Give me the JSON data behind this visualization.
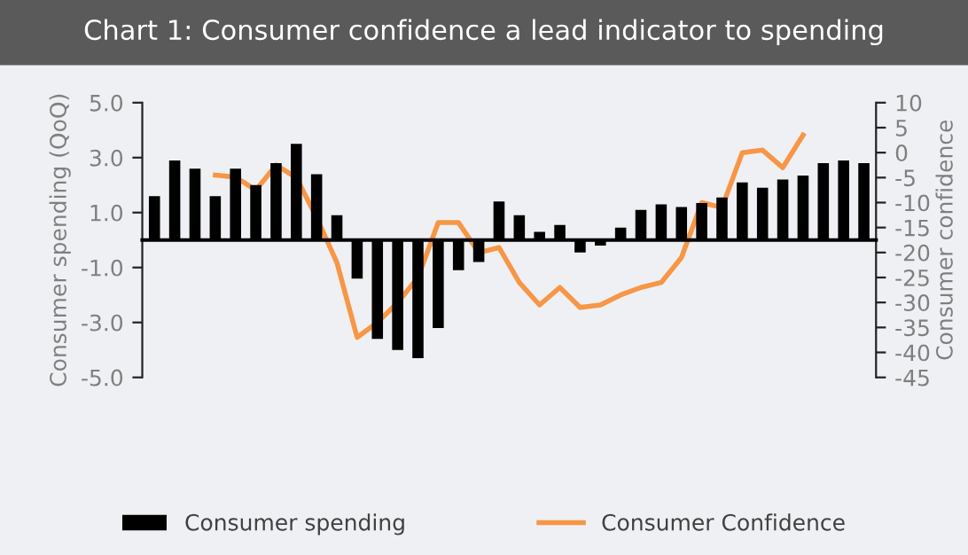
{
  "chart_data": {
    "type": "bar",
    "title": "Chart 1: Consumer confidence a lead indicator to spending",
    "ylabel": "Consumer spending (QoQ)",
    "y2label": "Consumer confidence",
    "categories": [
      null,
      null,
      null,
      null,
      null,
      null,
      null,
      null,
      null,
      null,
      null,
      null,
      null,
      null,
      null,
      null,
      null,
      null,
      null,
      null,
      null,
      null,
      null,
      null,
      null,
      null,
      null,
      null,
      null,
      null,
      null,
      null,
      null,
      null,
      null,
      null
    ],
    "series": [
      {
        "name": "Consumer spending",
        "color": "#000000",
        "values": [
          1.6,
          2.9,
          2.6,
          1.6,
          2.6,
          2.0,
          2.8,
          3.5,
          2.4,
          0.9,
          -1.4,
          -3.6,
          -4.0,
          -4.3,
          -3.2,
          -1.1,
          -0.8,
          1.4,
          0.9,
          0.3,
          0.55,
          -0.45,
          -0.2,
          0.45,
          1.1,
          1.3,
          1.2,
          1.35,
          1.55,
          2.1,
          1.9,
          2.2,
          2.35,
          2.8,
          2.9,
          2.8
        ]
      },
      {
        "name": "Consumer Confidence",
        "type": "line",
        "axis": "y2",
        "color": "#f79646",
        "values": [
          null,
          null,
          null,
          -4.5,
          -4.9,
          -7.5,
          -2.5,
          -5.0,
          -13.0,
          -22.0,
          -37.0,
          -34.0,
          -30.0,
          -25.0,
          -14.0,
          -14.0,
          -20.0,
          -19.0,
          -26.0,
          -30.5,
          -27.0,
          -31.0,
          -30.5,
          -28.5,
          -27.0,
          -26.0,
          -21.0,
          -10.0,
          -11.0,
          0.0,
          0.5,
          -3.0,
          3.5,
          null,
          null,
          null
        ]
      }
    ],
    "ylim": [
      -5,
      5
    ],
    "yticks": [
      {
        "value": 5,
        "label": "5.0"
      },
      {
        "value": 3,
        "label": "3.0"
      },
      {
        "value": 1,
        "label": "1.0"
      },
      {
        "value": -1,
        "label": "-1.0"
      },
      {
        "value": -3,
        "label": "-3.0"
      },
      {
        "value": -5,
        "label": "-5.0"
      }
    ],
    "y2lim": [
      -45,
      10
    ],
    "y2ticks": [
      10,
      5,
      0,
      -5,
      -10,
      -15,
      -20,
      -25,
      -30,
      -35,
      -40,
      -45
    ],
    "legend": "bottom",
    "grid": false
  }
}
